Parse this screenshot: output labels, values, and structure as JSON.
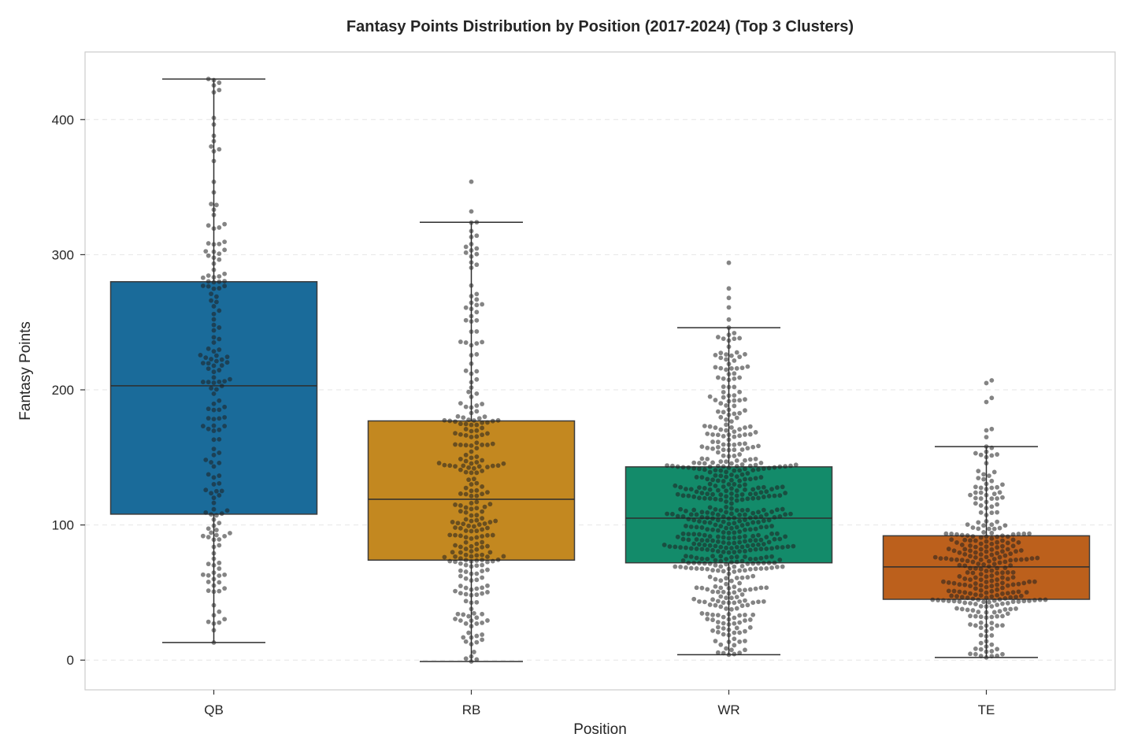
{
  "chart_data": {
    "type": "box",
    "title": "Fantasy Points Distribution by Position (2017-2024) (Top 3 Clusters)",
    "xlabel": "Position",
    "ylabel": "Fantasy Points",
    "ylim": [
      -22,
      450
    ],
    "yticks": [
      0,
      100,
      200,
      300,
      400
    ],
    "grid": "horizontal-dashed",
    "overlay": "swarm",
    "categories": [
      "QB",
      "RB",
      "WR",
      "TE"
    ],
    "colors": [
      "#1a6b9a",
      "#c38820",
      "#138b6a",
      "#bc601c"
    ],
    "boxes": [
      {
        "name": "QB",
        "whisker_low": 13,
        "q1": 108,
        "median": 203,
        "q3": 280,
        "whisker_high": 430,
        "outliers": []
      },
      {
        "name": "RB",
        "whisker_low": -1,
        "q1": 74,
        "median": 119,
        "q3": 177,
        "whisker_high": 324,
        "outliers": [
          332,
          354
        ]
      },
      {
        "name": "WR",
        "whisker_low": 4,
        "q1": 72,
        "median": 105,
        "q3": 143,
        "whisker_high": 246,
        "outliers": [
          252,
          261,
          268,
          275,
          294
        ]
      },
      {
        "name": "TE",
        "whisker_low": 2,
        "q1": 45,
        "median": 69,
        "q3": 92,
        "whisker_high": 158,
        "outliers": [
          165,
          170,
          171,
          191,
          194,
          205,
          207
        ]
      }
    ],
    "swarm_counts": [
      180,
      270,
      560,
      300
    ]
  }
}
